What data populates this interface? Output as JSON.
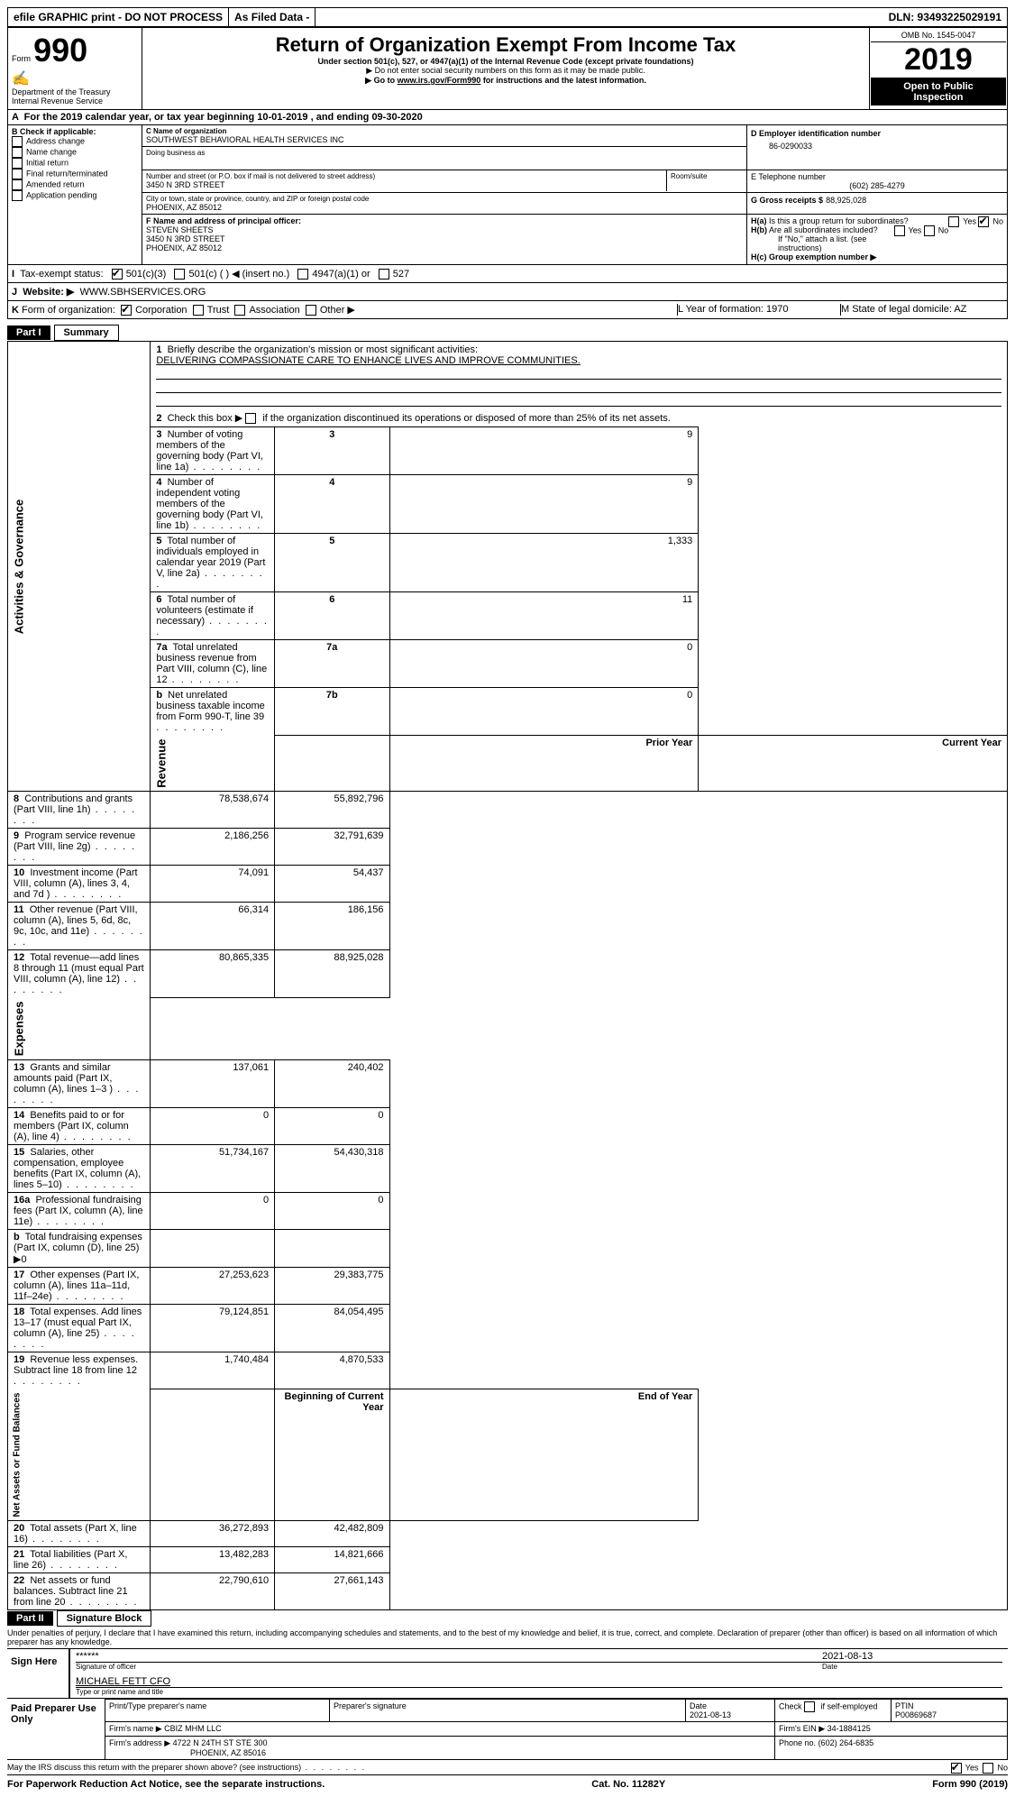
{
  "top": {
    "efile": "efile GRAPHIC print - DO NOT PROCESS",
    "asfiled": "As Filed Data -",
    "dln": "DLN: 93493225029191"
  },
  "header": {
    "form": "Form",
    "num": "990",
    "dept": "Department of the Treasury\nInternal Revenue Service",
    "title": "Return of Organization Exempt From Income Tax",
    "sub1": "Under section 501(c), 527, or 4947(a)(1) of the Internal Revenue Code (except private foundations)",
    "sub2": "▶ Do not enter social security numbers on this form as it may be made public.",
    "sub3_pre": "▶ Go to ",
    "sub3_link": "www.irs.gov/Form990",
    "sub3_post": " for instructions and the latest information.",
    "omb": "OMB No. 1545-0047",
    "year": "2019",
    "open": "Open to Public Inspection"
  },
  "A": {
    "text_pre": "For the 2019 calendar year, or tax year beginning ",
    "begin": "10-01-2019",
    "mid": " , and ending ",
    "end": "09-30-2020"
  },
  "B": {
    "label": "Check if applicable:",
    "items": [
      "Address change",
      "Name change",
      "Initial return",
      "Final return/terminated",
      "Amended return",
      "Application pending"
    ]
  },
  "C": {
    "label": "C Name of organization",
    "name": "SOUTHWEST BEHAVIORAL HEALTH SERVICES INC",
    "dba_label": "Doing business as",
    "street_label": "Number and street (or P.O. box if mail is not delivered to street address)",
    "street": "3450 N 3RD STREET",
    "room_label": "Room/suite",
    "city_label": "City or town, state or province, country, and ZIP or foreign postal code",
    "city": "PHOENIX, AZ  85012"
  },
  "D": {
    "label": "D Employer identification number",
    "value": "86-0290033"
  },
  "E": {
    "label": "E Telephone number",
    "value": "(602) 285-4279"
  },
  "F": {
    "label": "F   Name and address of principal officer:",
    "name": "STEVEN SHEETS",
    "addr1": "3450 N 3RD STREET",
    "addr2": "PHOENIX, AZ  85012"
  },
  "G": {
    "label": "G Gross receipts $",
    "value": "88,925,028"
  },
  "H": {
    "a": "H(a)  Is this a group return for subordinates?",
    "b": "H(b)  Are all subordinates included?",
    "ifno": "If \"No,\" attach a list. (see instructions)",
    "c": "H(c)  Group exemption number ▶"
  },
  "I": {
    "label": "Tax-exempt status:",
    "opts": [
      "501(c)(3)",
      "501(c) (   ) ◀ (insert no.)",
      "4947(a)(1) or",
      "527"
    ]
  },
  "J": {
    "label": "Website: ▶",
    "value": "WWW.SBHSERVICES.ORG"
  },
  "K": {
    "label": "Form of organization:",
    "opts": [
      "Corporation",
      "Trust",
      "Association",
      "Other ▶"
    ]
  },
  "L": {
    "text": "L Year of formation: 1970"
  },
  "M": {
    "text": "M State of legal domicile: AZ"
  },
  "part1": {
    "label": "Part I",
    "title": "Summary",
    "l1": "Briefly describe the organization's mission or most significant activities:",
    "mission": "DELIVERING COMPASSIONATE CARE TO ENHANCE LIVES AND IMPROVE COMMUNITIES.",
    "l2": "Check this box ▶         if the organization discontinued its operations or disposed of more than 25% of its net assets.",
    "headers": {
      "prior": "Prior Year",
      "current": "Current Year",
      "boy": "Beginning of Current Year",
      "eoy": "End of Year"
    },
    "rows": [
      {
        "n": "3",
        "t": "Number of voting members of the governing body (Part VI, line 1a)",
        "v": "9"
      },
      {
        "n": "4",
        "t": "Number of independent voting members of the governing body (Part VI, line 1b)",
        "v": "9"
      },
      {
        "n": "5",
        "t": "Total number of individuals employed in calendar year 2019 (Part V, line 2a)",
        "v": "1,333"
      },
      {
        "n": "6",
        "t": "Total number of volunteers (estimate if necessary)",
        "v": "11"
      },
      {
        "n": "7a",
        "t": "Total unrelated business revenue from Part VIII, column (C), line 12",
        "v": "0"
      },
      {
        "n": "b",
        "t": "Net unrelated business taxable income from Form 990-T, line 39",
        "ln": "7b",
        "v": "0"
      }
    ],
    "revenue": [
      {
        "n": "8",
        "t": "Contributions and grants (Part VIII, line 1h)",
        "p": "78,538,674",
        "c": "55,892,796"
      },
      {
        "n": "9",
        "t": "Program service revenue (Part VIII, line 2g)",
        "p": "2,186,256",
        "c": "32,791,639"
      },
      {
        "n": "10",
        "t": "Investment income (Part VIII, column (A), lines 3, 4, and 7d )",
        "p": "74,091",
        "c": "54,437"
      },
      {
        "n": "11",
        "t": "Other revenue (Part VIII, column (A), lines 5, 6d, 8c, 9c, 10c, and 11e)",
        "p": "66,314",
        "c": "186,156"
      },
      {
        "n": "12",
        "t": "Total revenue—add lines 8 through 11 (must equal Part VIII, column (A), line 12)",
        "p": "80,865,335",
        "c": "88,925,028"
      }
    ],
    "expenses": [
      {
        "n": "13",
        "t": "Grants and similar amounts paid (Part IX, column (A), lines 1–3 )",
        "p": "137,061",
        "c": "240,402"
      },
      {
        "n": "14",
        "t": "Benefits paid to or for members (Part IX, column (A), line 4)",
        "p": "0",
        "c": "0"
      },
      {
        "n": "15",
        "t": "Salaries, other compensation, employee benefits (Part IX, column (A), lines 5–10)",
        "p": "51,734,167",
        "c": "54,430,318"
      },
      {
        "n": "16a",
        "t": "Professional fundraising fees (Part IX, column (A), line 11e)",
        "p": "0",
        "c": "0"
      },
      {
        "n": "b",
        "t": "Total fundraising expenses (Part IX, column (D), line 25) ▶0",
        "p": "",
        "c": ""
      },
      {
        "n": "17",
        "t": "Other expenses (Part IX, column (A), lines 11a–11d, 11f–24e)",
        "p": "27,253,623",
        "c": "29,383,775"
      },
      {
        "n": "18",
        "t": "Total expenses. Add lines 13–17 (must equal Part IX, column (A), line 25)",
        "p": "79,124,851",
        "c": "84,054,495"
      },
      {
        "n": "19",
        "t": "Revenue less expenses. Subtract line 18 from line 12",
        "p": "1,740,484",
        "c": "4,870,533"
      }
    ],
    "netassets": [
      {
        "n": "20",
        "t": "Total assets (Part X, line 16)",
        "p": "36,272,893",
        "c": "42,482,809"
      },
      {
        "n": "21",
        "t": "Total liabilities (Part X, line 26)",
        "p": "13,482,283",
        "c": "14,821,666"
      },
      {
        "n": "22",
        "t": "Net assets or fund balances. Subtract line 21 from line 20",
        "p": "22,790,610",
        "c": "27,661,143"
      }
    ],
    "tabs": [
      "Activities & Governance",
      "Revenue",
      "Expenses",
      "Net Assets or Fund Balances"
    ]
  },
  "part2": {
    "label": "Part II",
    "title": "Signature Block",
    "perjury": "Under penalties of perjury, I declare that I have examined this return, including accompanying schedules and statements, and to the best of my knowledge and belief, it is true, correct, and complete. Declaration of preparer (other than officer) is based on all information of which preparer has any knowledge.",
    "sign_here": "Sign Here",
    "sig_stars": "******",
    "sig_label": "Signature of officer",
    "sig_date": "2021-08-13",
    "date_label": "Date",
    "officer": "MICHAEL FETT CFO",
    "officer_label": "Type or print name and title",
    "paid": "Paid Preparer Use Only",
    "pcol1": "Print/Type preparer's name",
    "pcol2": "Preparer's signature",
    "pcol3": "Date",
    "pdate": "2021-08-13",
    "pcheck": "Check        if self-employed",
    "ptin_label": "PTIN",
    "ptin": "P00869687",
    "firm_name_label": "Firm's name    ▶",
    "firm_name": "CBIZ MHM LLC",
    "firm_ein_label": "Firm's EIN ▶",
    "firm_ein": "34-1884125",
    "firm_addr_label": "Firm's address ▶",
    "firm_addr": "4722 N 24TH ST STE 300",
    "firm_city": "PHOENIX, AZ  85016",
    "phone_label": "Phone no.",
    "phone": "(602) 264-6835",
    "discuss": "May the IRS discuss this return with the preparer shown above? (see instructions)"
  },
  "footer": {
    "left": "For Paperwork Reduction Act Notice, see the separate instructions.",
    "mid": "Cat. No. 11282Y",
    "right": "Form 990 (2019)"
  }
}
